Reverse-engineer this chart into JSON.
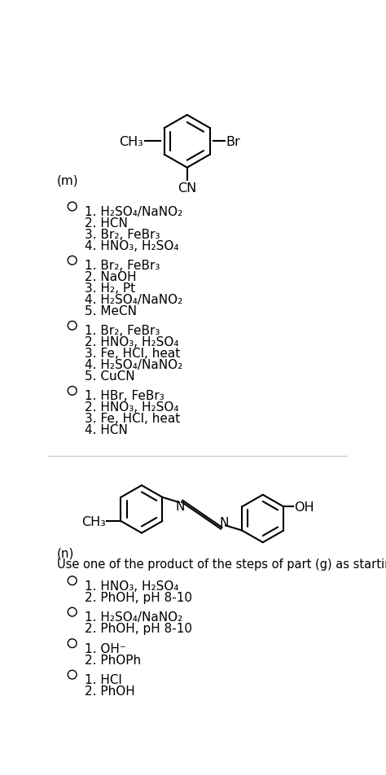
{
  "bg_color": "#ffffff",
  "figsize": [
    4.74,
    9.53
  ],
  "dpi": 100,
  "section_m": {
    "options": [
      [
        "1. H₂SO₄/NaNO₂",
        "2. HCN",
        "3. Br₂, FeBr₃",
        "4. HNO₃, H₂SO₄"
      ],
      [
        "1. Br₂, FeBr₃",
        "2. NaOH",
        "3. H₂, Pt",
        "4. H₂SO₄/NaNO₂",
        "5. MeCN"
      ],
      [
        "1. Br₂, FeBr₃",
        "2. HNO₃, H₂SO₄",
        "3. Fe, HCl, heat",
        "4. H₂SO₄/NaNO₂",
        "5. CuCN"
      ],
      [
        "1. HBr, FeBr₃",
        "2. HNO₃, H₂SO₄",
        "3. Fe, HCl, heat",
        "4. HCN"
      ]
    ]
  },
  "section_n": {
    "note": "Use one of the product of the steps of part (g) as starting material.",
    "options": [
      [
        "1. HNO₃, H₂SO₄",
        "2. PhOH, pH 8-10"
      ],
      [
        "1. H₂SO₄/NaNO₂",
        "2. PhOH, pH 8-10"
      ],
      [
        "1. OH⁻",
        "2. PhOPh"
      ],
      [
        "1. HCl",
        "2. PhOH"
      ]
    ]
  }
}
